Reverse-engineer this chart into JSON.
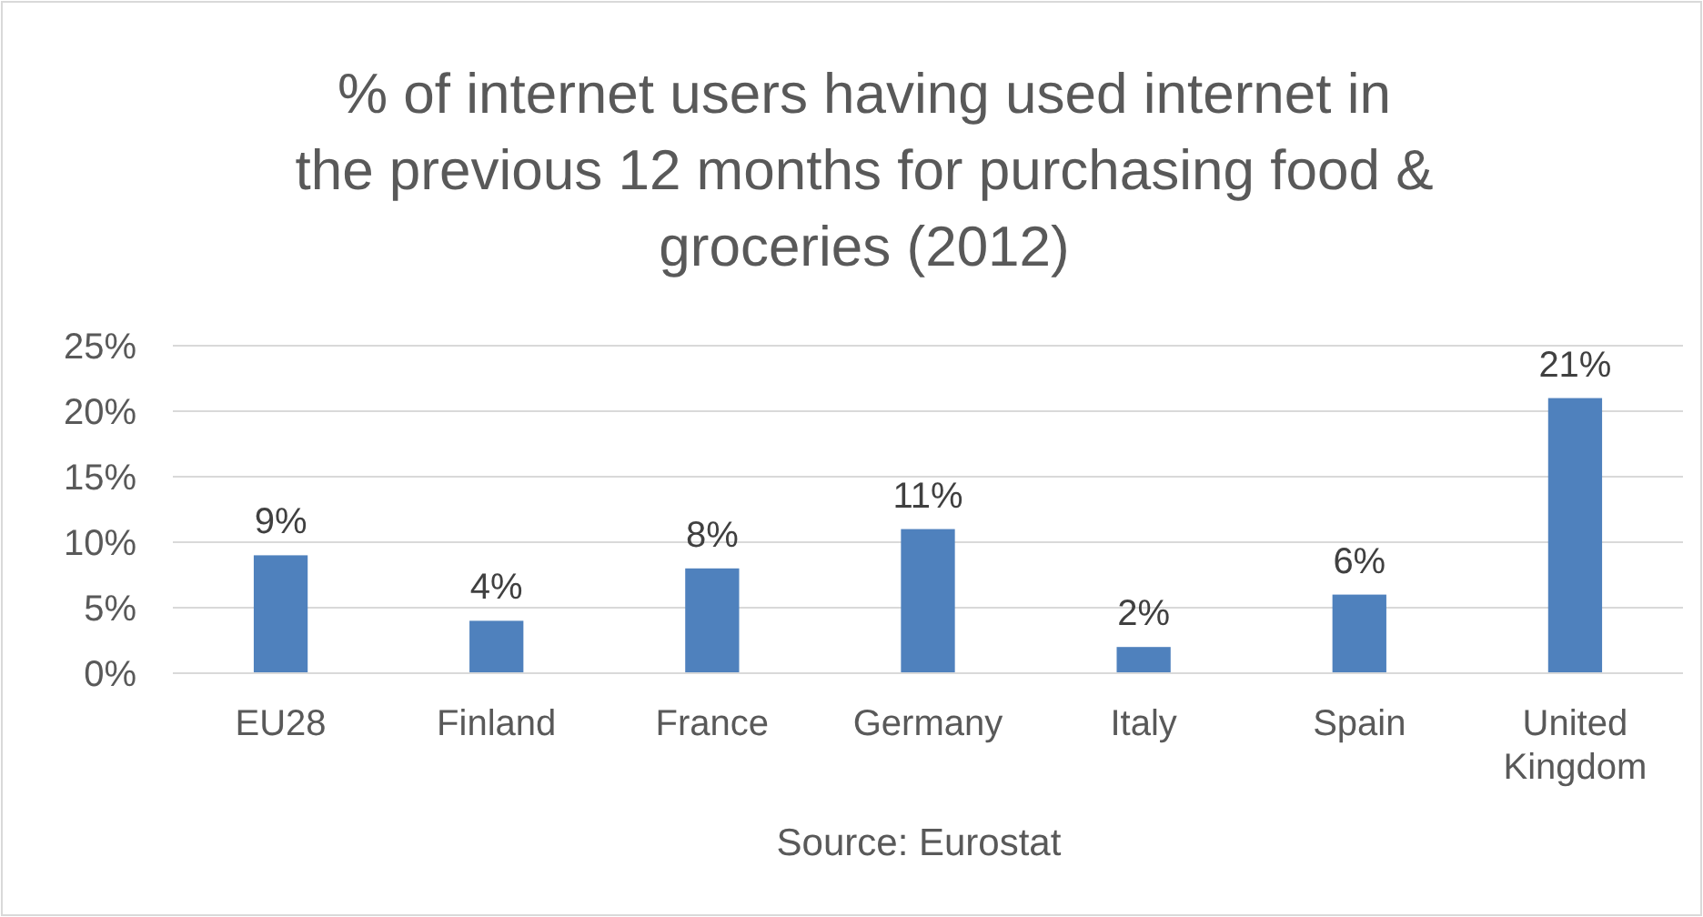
{
  "chart_data": {
    "type": "bar",
    "title": "% of internet users having used internet in the previous 12 months for purchasing food & groceries (2012)",
    "categories": [
      "EU28",
      "Finland",
      "France",
      "Germany",
      "Italy",
      "Spain",
      "United Kingdom"
    ],
    "values": [
      9,
      4,
      8,
      11,
      2,
      6,
      21
    ],
    "value_labels": [
      "9%",
      "4%",
      "8%",
      "11%",
      "2%",
      "6%",
      "21%"
    ],
    "color": "#4f81bd",
    "ylim": [
      0,
      25
    ],
    "yticks": [
      {
        "value": 0,
        "label": "0%"
      },
      {
        "value": 5,
        "label": "5%"
      },
      {
        "value": 10,
        "label": "10%"
      },
      {
        "value": 15,
        "label": "15%"
      },
      {
        "value": 20,
        "label": "20%"
      },
      {
        "value": 25,
        "label": "25%"
      }
    ],
    "grid": "y",
    "annotations": [
      "Source: Eurostat"
    ]
  }
}
